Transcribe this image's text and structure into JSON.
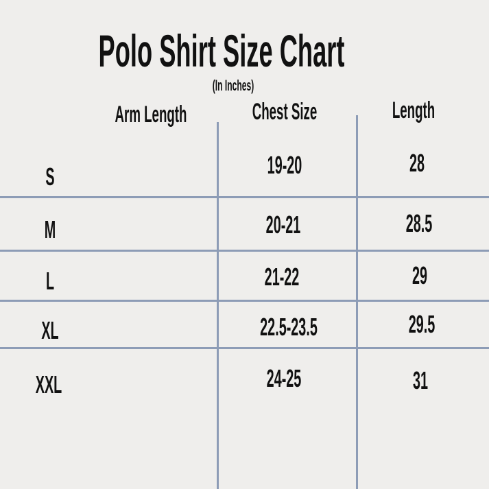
{
  "chart_data": {
    "type": "table",
    "title": "Polo Shirt Size Chart",
    "subtitle": "(In Inches)",
    "columns": [
      "Arm Length",
      "Chest Size",
      "Length"
    ],
    "rows": [
      {
        "size": "S",
        "chest": "19-20",
        "length": "28"
      },
      {
        "size": "M",
        "chest": "20-21",
        "length": "28.5"
      },
      {
        "size": "L",
        "chest": "21-22",
        "length": "29"
      },
      {
        "size": "XL",
        "chest": "22.5-23.5",
        "length": "29.5"
      },
      {
        "size": "XXL",
        "chest": "24-25",
        "length": "31"
      }
    ],
    "line_color": "#8d9cb6"
  }
}
